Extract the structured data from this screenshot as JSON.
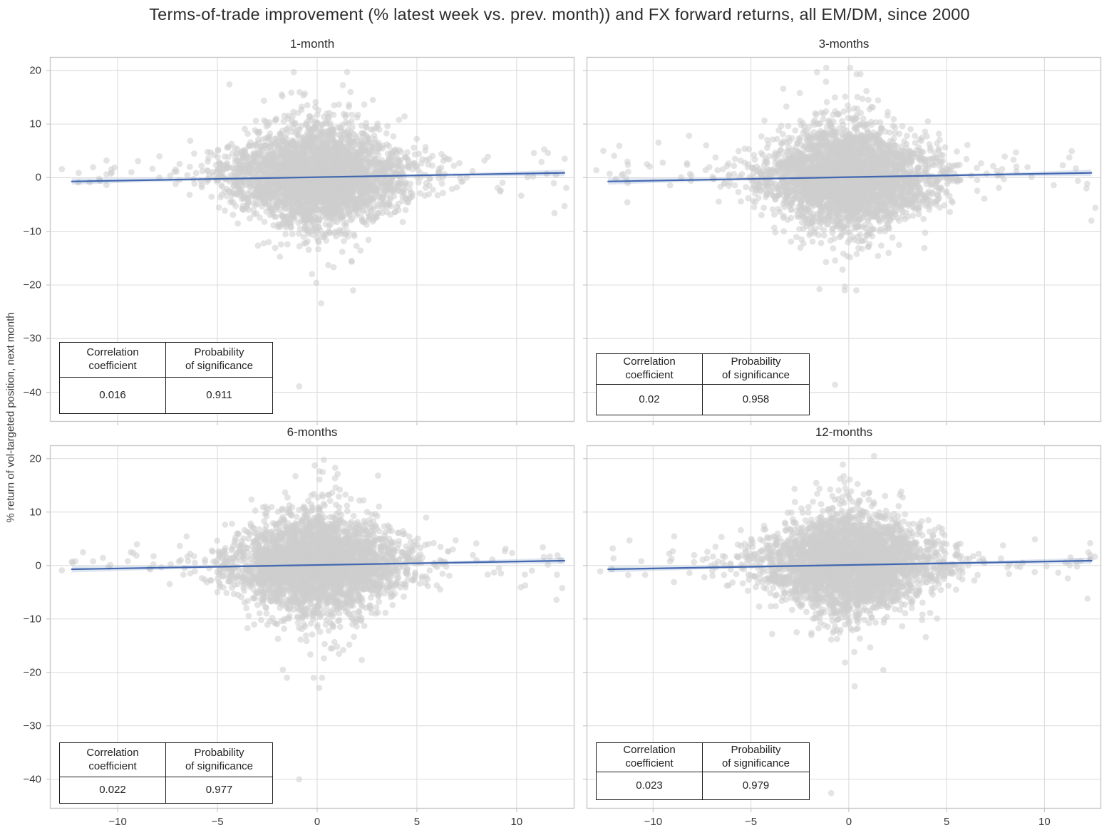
{
  "figure": {
    "title": "Terms-of-trade improvement (% latest week vs. prev. month)) and FX forward returns, all EM/DM, since 2000",
    "ylabel": "% return of vol-targeted position, next month"
  },
  "stats_table_labels": {
    "col1": "Correlation\ncoefficient",
    "col2": "Probability\nof significance"
  },
  "colors": {
    "regression_line": "#4368b0",
    "confidence_band": "#4c72b0",
    "scatter_point": "#cdcdcd",
    "gridline": "#dcdcdc",
    "spine": "#c8c8c8",
    "text": "#2d2d2d"
  },
  "chart_data": {
    "type": "scatter",
    "title": "Terms-of-trade improvement (% latest week vs. prev. month)) and FX forward returns, all EM/DM, since 2000",
    "xlabel": "",
    "ylabel": "% return of vol-targeted position, next month",
    "grid": true,
    "xlim": [
      -13.4,
      12.9
    ],
    "ylim": [
      -45.5,
      22.5
    ],
    "xticks": [
      -10,
      -5,
      0,
      5,
      10
    ],
    "xtick_labels": [
      "−10",
      "−5",
      "0",
      "5",
      "10"
    ],
    "yticks": [
      20,
      10,
      0,
      -10,
      -20,
      -30,
      -40
    ],
    "ytick_labels": [
      "20",
      "10",
      "0",
      "−10",
      "−20",
      "−30",
      "−40"
    ],
    "panels": [
      {
        "title": "1-month",
        "correlation": 0.016,
        "probability": 0.911,
        "correlation_text": "0.016",
        "probability_text": "0.911",
        "regression": {
          "x_start": -12.3,
          "x_end": 12.4,
          "y_start": -0.7,
          "y_end": 0.9,
          "band_halfwidth_center": 0.18,
          "band_halfwidth_edge": 0.6
        },
        "scatter_model": {
          "seed": 11,
          "n_core": 3200,
          "x_sigma": 2.15,
          "y_sigma": 5.4,
          "diamond_k": 10.5,
          "shape_floor": 0.15,
          "heavy_frac": 0.045,
          "heavy_mult": 1.9,
          "y_offset": 0.3,
          "wings": {
            "n": 70,
            "x_min": 4.0,
            "x_max": 12.6,
            "y_mean": 1.1,
            "y_sigma": 2.2
          },
          "outliers": [
            [
              -0.9,
              -38.9
            ],
            [
              0.2,
              -23.4
            ],
            [
              1.5,
              19.7
            ],
            [
              -4.4,
              17.4
            ],
            [
              11.9,
              -6.6
            ],
            [
              12.4,
              -5.3
            ],
            [
              -12.8,
              1.6
            ]
          ]
        }
      },
      {
        "title": "3-months",
        "correlation": 0.02,
        "probability": 0.958,
        "correlation_text": "0.02",
        "probability_text": "0.958",
        "regression": {
          "x_start": -12.3,
          "x_end": 12.4,
          "y_start": -0.7,
          "y_end": 0.9,
          "band_halfwidth_center": 0.18,
          "band_halfwidth_edge": 0.6
        },
        "scatter_model": {
          "seed": 29,
          "n_core": 3200,
          "x_sigma": 2.15,
          "y_sigma": 5.4,
          "diamond_k": 10.5,
          "shape_floor": 0.15,
          "heavy_frac": 0.045,
          "heavy_mult": 1.9,
          "y_offset": 0.3,
          "wings": {
            "n": 70,
            "x_min": 4.0,
            "x_max": 12.6,
            "y_mean": 1.1,
            "y_sigma": 2.2
          },
          "outliers": [
            [
              -0.7,
              -38.6
            ],
            [
              -0.2,
              -20.3
            ],
            [
              0.4,
              19.3
            ],
            [
              12.4,
              -8.0
            ],
            [
              -12.9,
              1.4
            ],
            [
              12.6,
              -5.6
            ]
          ]
        }
      },
      {
        "title": "6-months",
        "correlation": 0.022,
        "probability": 0.977,
        "correlation_text": "0.022",
        "probability_text": "0.977",
        "regression": {
          "x_start": -12.3,
          "x_end": 12.4,
          "y_start": -0.7,
          "y_end": 0.9,
          "band_halfwidth_center": 0.18,
          "band_halfwidth_edge": 0.6
        },
        "scatter_model": {
          "seed": 47,
          "n_core": 3200,
          "x_sigma": 2.15,
          "y_sigma": 5.3,
          "diamond_k": 10.5,
          "shape_floor": 0.15,
          "heavy_frac": 0.04,
          "heavy_mult": 1.8,
          "y_offset": 0.3,
          "wings": {
            "n": 70,
            "x_min": 4.0,
            "x_max": 12.6,
            "y_mean": 1.1,
            "y_sigma": 2.2
          },
          "outliers": [
            [
              -0.9,
              -40.0
            ],
            [
              0.1,
              -22.9
            ],
            [
              0.9,
              18.3
            ],
            [
              12.0,
              -6.4
            ],
            [
              -12.8,
              -0.9
            ]
          ]
        }
      },
      {
        "title": "12-months",
        "correlation": 0.023,
        "probability": 0.979,
        "correlation_text": "0.023",
        "probability_text": "0.979",
        "regression": {
          "x_start": -12.3,
          "x_end": 12.4,
          "y_start": -0.7,
          "y_end": 0.9,
          "band_halfwidth_center": 0.18,
          "band_halfwidth_edge": 0.6
        },
        "scatter_model": {
          "seed": 63,
          "n_core": 3200,
          "x_sigma": 2.15,
          "y_sigma": 5.3,
          "diamond_k": 10.5,
          "shape_floor": 0.15,
          "heavy_frac": 0.04,
          "heavy_mult": 1.8,
          "y_offset": 0.3,
          "wings": {
            "n": 70,
            "x_min": 4.0,
            "x_max": 12.6,
            "y_mean": 1.1,
            "y_sigma": 2.2
          },
          "outliers": [
            [
              -0.9,
              -42.6
            ],
            [
              -0.3,
              18.9
            ],
            [
              0.3,
              -22.6
            ],
            [
              12.2,
              -6.2
            ],
            [
              -12.7,
              -1.1
            ]
          ]
        }
      }
    ]
  }
}
